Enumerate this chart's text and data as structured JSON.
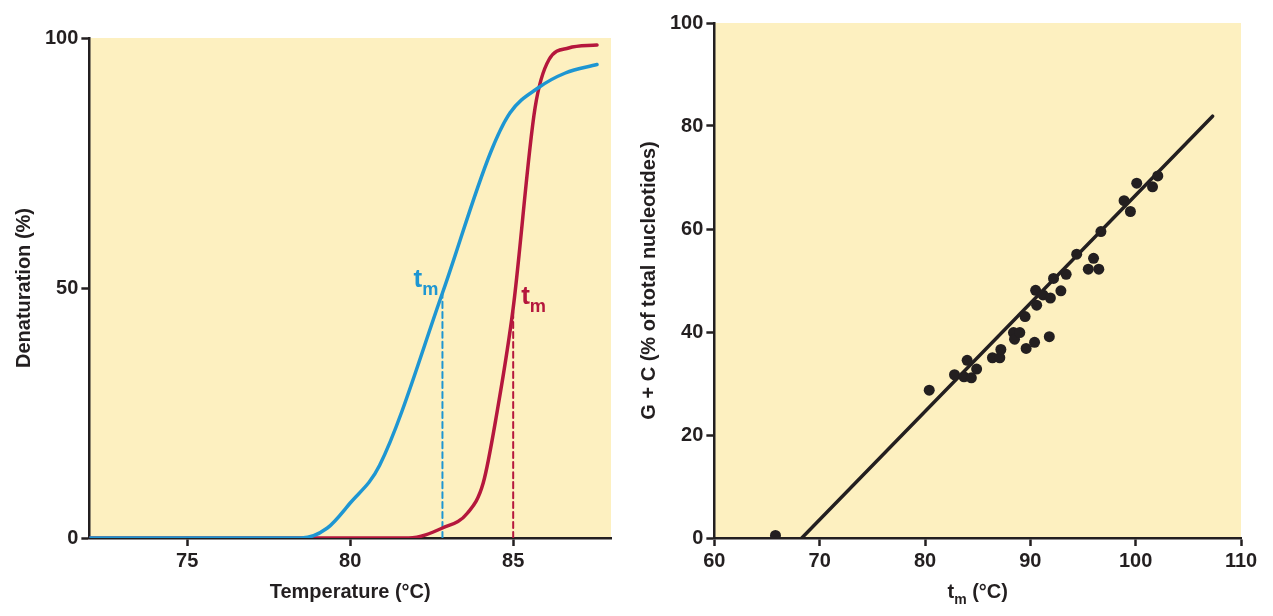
{
  "chart_data": [
    {
      "type": "line",
      "xlabel": "Temperature (°C)",
      "ylabel": "Denaturation (%)",
      "xlim": [
        72,
        88
      ],
      "ylim": [
        0,
        100
      ],
      "xticks": [
        75,
        80,
        85
      ],
      "yticks": [
        0,
        50,
        100
      ],
      "legend": false,
      "grid": false,
      "series": [
        {
          "color": "#1e96d2",
          "x": [
            72,
            78.5,
            79.3,
            80.0,
            80.9,
            82.83,
            84.3,
            84.9,
            85.76,
            86.6,
            87.57
          ],
          "values": [
            0,
            0,
            2,
            7,
            14.5,
            49,
            77,
            85,
            90,
            93,
            94.7
          ]
        },
        {
          "color": "#b5173d",
          "x": [
            72,
            81.8,
            82.83,
            83.6,
            84.08,
            84.5,
            85.0,
            85.67,
            86.1,
            86.7,
            87.57
          ],
          "values": [
            0,
            0,
            2,
            5,
            11,
            25,
            46,
            86,
            95.7,
            98,
            98.6
          ]
        },
        {
          "color": "#1e96d2",
          "line_style": "dashed",
          "x": [
            82.83,
            82.83
          ],
          "values": [
            0,
            49
          ]
        },
        {
          "color": "#b5173d",
          "line_style": "dashed",
          "x": [
            85.0,
            85.0
          ],
          "values": [
            0,
            46
          ]
        }
      ],
      "annotations": [
        {
          "text": "t$_{m}$",
          "x": 82.83,
          "y": 49
        },
        {
          "text": "t$_{m}$",
          "x": 85.0,
          "y": 46
        }
      ]
    },
    {
      "type": "scatter",
      "xlabel": "t$_{m}$ (°C)",
      "ylabel": "G + C (% of total nucleotides)",
      "xlim": [
        60,
        110
      ],
      "ylim": [
        0,
        100
      ],
      "xticks": [
        60,
        70,
        80,
        90,
        100,
        110
      ],
      "yticks": [
        0,
        20,
        40,
        60,
        80,
        100
      ],
      "legend": false,
      "grid": false,
      "marker": "circle",
      "series": [
        {
          "color": "#231f20",
          "x": [
            65.8,
            80.4,
            82.8,
            83.7,
            84.0,
            84.4,
            84.9,
            86.4,
            87.1,
            87.2,
            88.4,
            88.5,
            89.0,
            89.6,
            89.5,
            90.4,
            90.5,
            90.6,
            91.2,
            91.8,
            91.9,
            92.2,
            92.9,
            93.4,
            94.4,
            95.5,
            96.0,
            96.5,
            96.7,
            98.9,
            99.5,
            100.1,
            101.6,
            102.1
          ],
          "values": [
            0.5,
            28.7,
            31.7,
            31.3,
            34.5,
            31.1,
            32.8,
            35.0,
            35.0,
            36.6,
            39.9,
            38.6,
            39.9,
            36.8,
            43.0,
            38.0,
            48.1,
            45.2,
            47.2,
            39.1,
            46.6,
            50.4,
            48.0,
            51.2,
            55.1,
            52.2,
            54.3,
            52.2,
            59.5,
            65.5,
            63.4,
            68.9,
            68.2,
            70.3
          ]
        },
        {
          "type": "line",
          "marker": "none",
          "color": "#231f20",
          "x": [
            68.3,
            107.3
          ],
          "values": [
            0,
            81.9
          ]
        }
      ]
    }
  ]
}
